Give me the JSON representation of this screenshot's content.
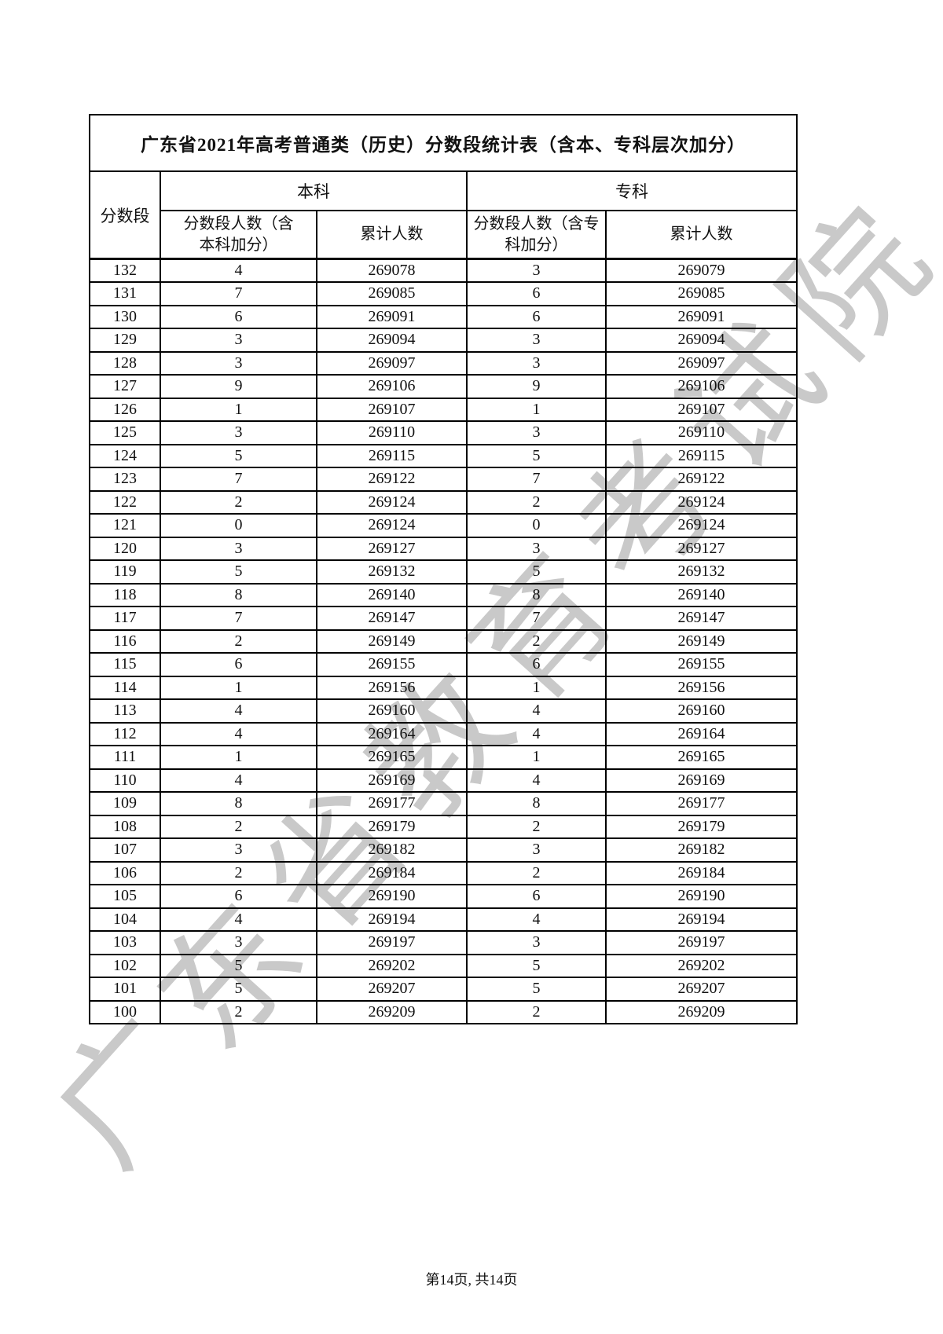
{
  "page": {
    "watermark": "广东省教育考试院",
    "footer": "第14页, 共14页"
  },
  "table": {
    "title": "广东省2021年高考普通类（历史）分数段统计表（含本、专科层次加分）",
    "headers": {
      "score_col": "分数段",
      "undergrad_group": "本科",
      "college_group": "专科",
      "undergrad_count": "分数段人数（含\n本科加分）",
      "undergrad_cumulative": "累计人数",
      "college_count": "分数段人数（含专\n科加分）",
      "college_cumulative": "累计人数"
    },
    "rows": [
      [
        132,
        4,
        269078,
        3,
        269079
      ],
      [
        131,
        7,
        269085,
        6,
        269085
      ],
      [
        130,
        6,
        269091,
        6,
        269091
      ],
      [
        129,
        3,
        269094,
        3,
        269094
      ],
      [
        128,
        3,
        269097,
        3,
        269097
      ],
      [
        127,
        9,
        269106,
        9,
        269106
      ],
      [
        126,
        1,
        269107,
        1,
        269107
      ],
      [
        125,
        3,
        269110,
        3,
        269110
      ],
      [
        124,
        5,
        269115,
        5,
        269115
      ],
      [
        123,
        7,
        269122,
        7,
        269122
      ],
      [
        122,
        2,
        269124,
        2,
        269124
      ],
      [
        121,
        0,
        269124,
        0,
        269124
      ],
      [
        120,
        3,
        269127,
        3,
        269127
      ],
      [
        119,
        5,
        269132,
        5,
        269132
      ],
      [
        118,
        8,
        269140,
        8,
        269140
      ],
      [
        117,
        7,
        269147,
        7,
        269147
      ],
      [
        116,
        2,
        269149,
        2,
        269149
      ],
      [
        115,
        6,
        269155,
        6,
        269155
      ],
      [
        114,
        1,
        269156,
        1,
        269156
      ],
      [
        113,
        4,
        269160,
        4,
        269160
      ],
      [
        112,
        4,
        269164,
        4,
        269164
      ],
      [
        111,
        1,
        269165,
        1,
        269165
      ],
      [
        110,
        4,
        269169,
        4,
        269169
      ],
      [
        109,
        8,
        269177,
        8,
        269177
      ],
      [
        108,
        2,
        269179,
        2,
        269179
      ],
      [
        107,
        3,
        269182,
        3,
        269182
      ],
      [
        106,
        2,
        269184,
        2,
        269184
      ],
      [
        105,
        6,
        269190,
        6,
        269190
      ],
      [
        104,
        4,
        269194,
        4,
        269194
      ],
      [
        103,
        3,
        269197,
        3,
        269197
      ],
      [
        102,
        5,
        269202,
        5,
        269202
      ],
      [
        101,
        5,
        269207,
        5,
        269207
      ],
      [
        100,
        2,
        269209,
        2,
        269209
      ]
    ]
  }
}
